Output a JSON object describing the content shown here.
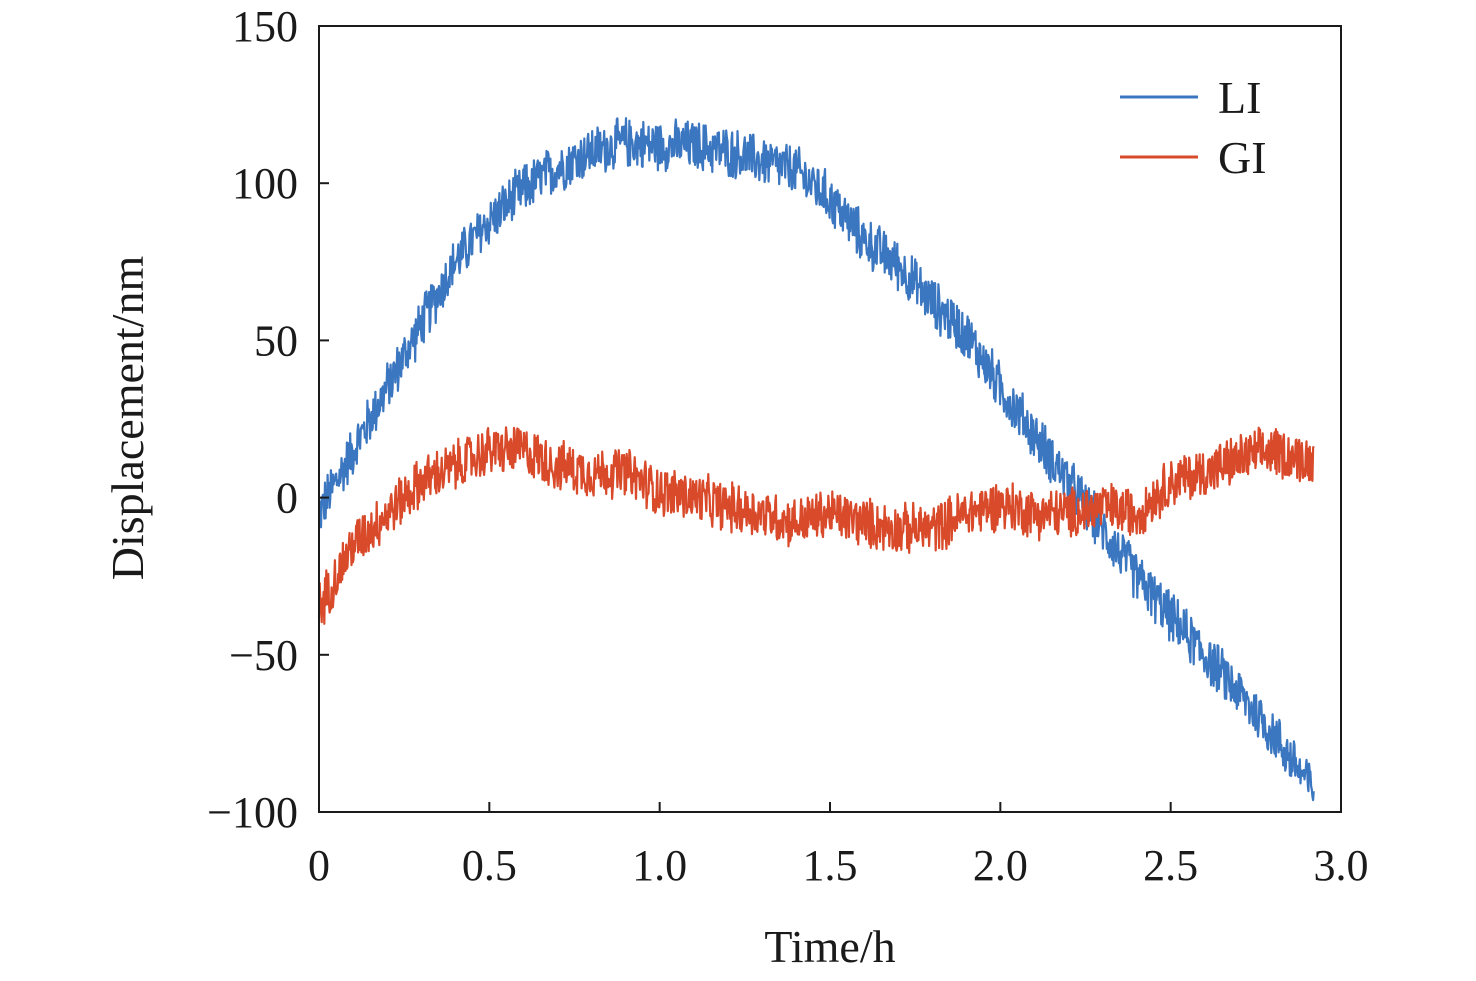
{
  "chart_data": {
    "type": "line",
    "title": "",
    "xlabel": "Time/h",
    "ylabel": "Displacement/nm",
    "xlim": [
      0,
      3.0
    ],
    "ylim": [
      -100,
      150
    ],
    "xticks": [
      0,
      0.5,
      1.0,
      1.5,
      2.0,
      2.5,
      3.0
    ],
    "xtick_labels": [
      "0",
      "0.5",
      "1.0",
      "1.5",
      "2.0",
      "2.5",
      "3.0"
    ],
    "yticks": [
      -100,
      -50,
      0,
      50,
      100,
      150
    ],
    "ytick_labels": [
      "−100",
      "−50",
      "0",
      "50",
      "100",
      "150"
    ],
    "grid": false,
    "legend_position": "top-right",
    "series": [
      {
        "name": "LI",
        "color": "#3b76c0",
        "x": [
          0,
          0.1,
          0.2,
          0.3,
          0.4,
          0.5,
          0.6,
          0.7,
          0.8,
          0.9,
          1.0,
          1.1,
          1.2,
          1.3,
          1.4,
          1.5,
          1.6,
          1.7,
          1.8,
          1.9,
          2.0,
          2.1,
          2.2,
          2.3,
          2.4,
          2.5,
          2.6,
          2.7,
          2.8,
          2.9
        ],
        "values": [
          -5,
          15,
          35,
          55,
          75,
          88,
          98,
          105,
          110,
          113,
          112,
          112,
          110,
          107,
          104,
          95,
          82,
          74,
          62,
          52,
          35,
          20,
          5,
          -10,
          -25,
          -38,
          -50,
          -62,
          -75,
          -90
        ]
      },
      {
        "name": "GI",
        "color": "#d94a2a",
        "x": [
          0,
          0.1,
          0.2,
          0.3,
          0.4,
          0.5,
          0.6,
          0.7,
          0.8,
          0.9,
          1.0,
          1.1,
          1.2,
          1.3,
          1.4,
          1.5,
          1.6,
          1.7,
          1.8,
          1.9,
          2.0,
          2.1,
          2.2,
          2.3,
          2.4,
          2.5,
          2.6,
          2.7,
          2.8,
          2.9
        ],
        "values": [
          -35,
          -15,
          -5,
          5,
          10,
          15,
          15,
          10,
          8,
          8,
          2,
          0,
          -3,
          -5,
          -8,
          -5,
          -8,
          -10,
          -10,
          -5,
          -2,
          -5,
          -5,
          -3,
          -5,
          5,
          8,
          12,
          15,
          12
        ]
      }
    ]
  }
}
